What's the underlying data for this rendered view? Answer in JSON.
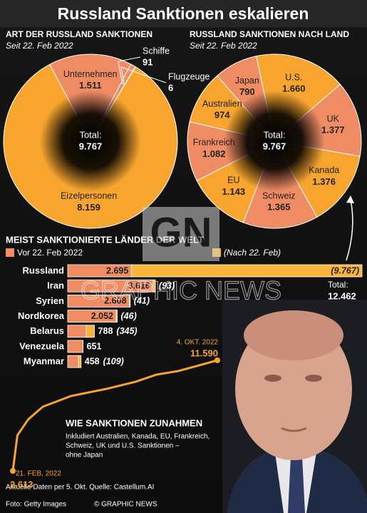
{
  "header": {
    "title": "Russland Sanktionen eskalieren"
  },
  "chart_data": [
    {
      "type": "pie",
      "title": "ART DER RUSSLAND SANKTIONEN",
      "subtitle": "Seit 22. Feb 2022",
      "categories": [
        "Unternehmen",
        "Schiffe",
        "Flugzeuge",
        "Eizelpersonen"
      ],
      "values": [
        1511,
        91,
        6,
        8159
      ],
      "value_labels": [
        "1.511",
        "91",
        "6",
        "8.159"
      ],
      "colors": [
        "#f08c64",
        "#f08c64",
        "#f7a52f",
        "#f7a52f"
      ],
      "center_text": [
        "Total:",
        "9.767"
      ]
    },
    {
      "type": "pie",
      "title": "RUSSLAND SANKTIONEN NACH LAND",
      "subtitle": "Seit 22. Feb 2022",
      "categories": [
        "U.S.",
        "UK",
        "Kanada",
        "Schweiz",
        "EU",
        "Frankreich",
        "Australien",
        "Japan"
      ],
      "values": [
        1660,
        1377,
        1376,
        1365,
        1143,
        1082,
        974,
        790
      ],
      "value_labels": [
        "1.660",
        "1.377",
        "1.376",
        "1.365",
        "1.143",
        "1.082",
        "974",
        "790"
      ],
      "colors": [
        "#f7a52f",
        "#f08c64",
        "#f7a52f",
        "#f08c64",
        "#f7a52f",
        "#f08c64",
        "#f7a52f",
        "#f08c64"
      ],
      "center_text": [
        "Total:",
        "9.767"
      ]
    },
    {
      "type": "bar",
      "orientation": "horizontal",
      "stacked": true,
      "title": "MEIST SANKTIONIERTE LÄNDER DER WELT",
      "categories": [
        "Russland",
        "Iran",
        "Syrien",
        "Nordkorea",
        "Belarus",
        "Venezuela",
        "Myanmar"
      ],
      "series": [
        {
          "name": "Vor 22. Feb 2022",
          "color": "#f08c64",
          "values": [
            2695,
            3616,
            2608,
            2052,
            788,
            651,
            458
          ],
          "value_labels": [
            "2.695",
            "3.616",
            "2.608",
            "2.052",
            "788",
            "651",
            "458"
          ]
        },
        {
          "name": "(Nach 22. Feb)",
          "color": "#f8b53a",
          "values": [
            9767,
            93,
            41,
            46,
            345,
            null,
            109
          ],
          "value_labels": [
            "(9.767)",
            "(93)",
            "(41)",
            "(46)",
            "(345)",
            null,
            "(109)"
          ]
        }
      ],
      "annotation": [
        "Total:",
        "12.462"
      ]
    },
    {
      "type": "line",
      "title": "WIE SANKTIONEN ZUNAHMEN",
      "subtitle": [
        "Inkludiert Australien, Kanada, EU, Frankreich,",
        "Schweiz, UK und U.S. Sanktionen –",
        "ohne Japan"
      ],
      "x": [
        "2022-02-21",
        "2022-02-26",
        "2022-03-10",
        "2022-03-26",
        "2022-04-26",
        "2022-06-04",
        "2022-07-06",
        "2022-07-29",
        "2022-08-22",
        "2022-09-14",
        "2022-10-04"
      ],
      "values": [
        2613,
        5500,
        6800,
        7824,
        8693,
        9272,
        9851,
        10430,
        10720,
        11183,
        11590
      ],
      "x_labels": [
        "21. FEB, 2022",
        null,
        null,
        null,
        null,
        null,
        null,
        null,
        null,
        null,
        "4. OKT. 2022"
      ],
      "value_labels": [
        "2.613",
        null,
        null,
        null,
        null,
        null,
        null,
        null,
        null,
        null,
        "11.590"
      ],
      "color": "#f7a52f"
    }
  ],
  "watermark": {
    "logo": "GN",
    "text": "GRAPHIC NEWS"
  },
  "footer": {
    "source": "Aktuelle Daten per 5. Okt. Quelle: Castellum.AI",
    "photo": "Foto: Getty Images",
    "copyright": "© GRAPHIC NEWS"
  }
}
